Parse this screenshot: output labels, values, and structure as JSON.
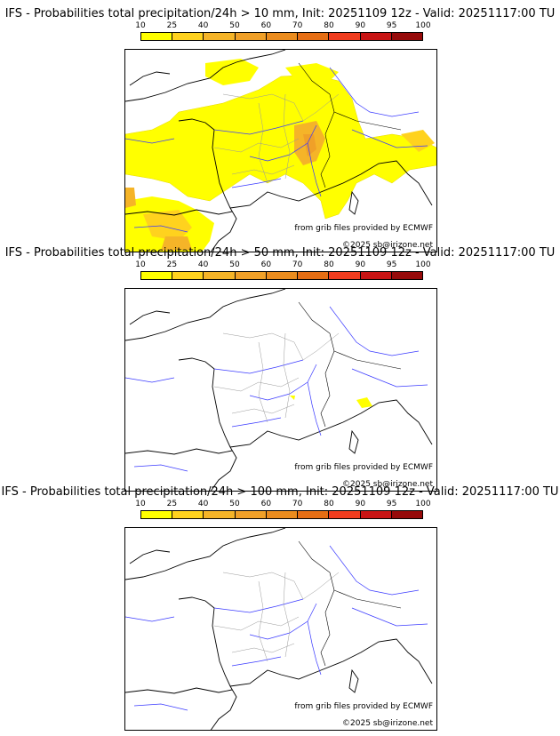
{
  "colorbar": {
    "labels": [
      "10",
      "25",
      "40",
      "50",
      "60",
      "70",
      "80",
      "90",
      "95",
      "100"
    ],
    "colors": [
      "#ffff00",
      "#ffd21e",
      "#f5b428",
      "#f0a028",
      "#eb8c1e",
      "#e66e14",
      "#f03c1e",
      "#c81414",
      "#960a0a",
      "#640a0a"
    ]
  },
  "panels": [
    {
      "title": "IFS - Probabilities total precipitation/24h > 10 mm, Init: 20251109 12z - Valid: 20251117:00 TU",
      "source_note": "from grib files provided by ECMWF",
      "copyright": "©2025 sb@irizone.net"
    },
    {
      "title": "IFS - Probabilities total precipitation/24h > 50 mm, Init: 20251109 12z - Valid: 20251117:00 TU",
      "source_note": "from grib files provided by ECMWF",
      "copyright": "©2025 sb@irizone.net"
    },
    {
      "title": "IFS - Probabilities total precipitation/24h > 100 mm, Init: 20251109 12z - Valid: 20251117:00 TU",
      "source_note": "from grib files provided by ECMWF",
      "copyright": "©2025 sb@irizone.net"
    }
  ]
}
